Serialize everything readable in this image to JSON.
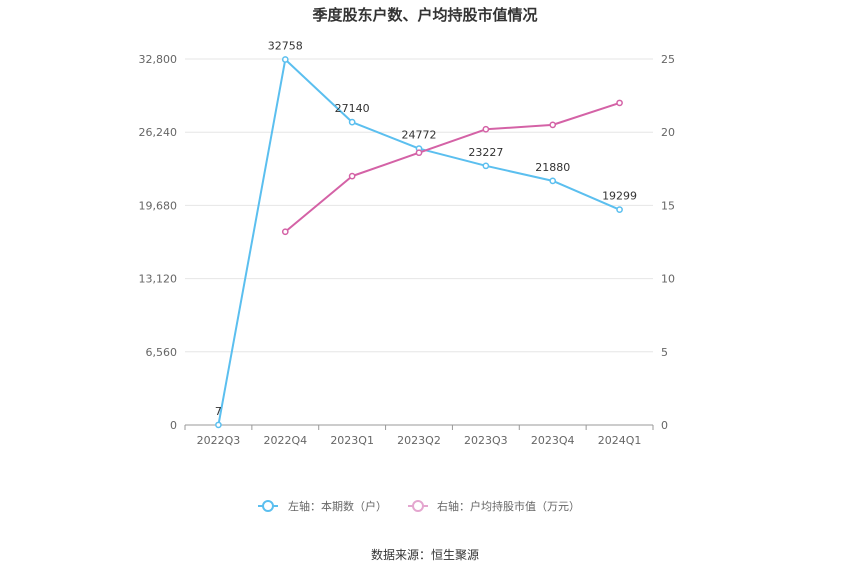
{
  "chart_data": {
    "type": "line",
    "title": "季度股东户数、户均持股市值情况",
    "categories": [
      "2022Q3",
      "2022Q4",
      "2023Q1",
      "2023Q2",
      "2023Q3",
      "2023Q4",
      "2024Q1"
    ],
    "left_axis": {
      "ticks": [
        0,
        6560,
        13120,
        19680,
        26240,
        32800
      ],
      "tick_labels": [
        "0",
        "6,560",
        "13,120",
        "19,680",
        "26,240",
        "32,800"
      ],
      "ylim": [
        0,
        32800
      ]
    },
    "right_axis": {
      "ticks": [
        0,
        5,
        10,
        15,
        20,
        25
      ],
      "tick_labels": [
        "0",
        "5",
        "10",
        "15",
        "20",
        "25"
      ],
      "ylim": [
        0,
        25
      ]
    },
    "series": [
      {
        "name": "左轴：本期数（户）",
        "axis": "left",
        "color": "#5bbfef",
        "values": [
          7,
          32758,
          27140,
          24772,
          23227,
          21880,
          19299
        ],
        "labels": [
          "7",
          "32758",
          "27140",
          "24772",
          "23227",
          "21880",
          "19299"
        ]
      },
      {
        "name": "右轴：户均持股市值（万元）",
        "axis": "right",
        "color": "#d462a6",
        "legend_color": "#e4a6cf",
        "values": [
          null,
          13.2,
          17.0,
          18.6,
          20.2,
          20.5,
          22.0
        ]
      }
    ],
    "grid": true,
    "legend_position": "bottom"
  },
  "footer": {
    "source": "数据来源：恒生聚源"
  }
}
